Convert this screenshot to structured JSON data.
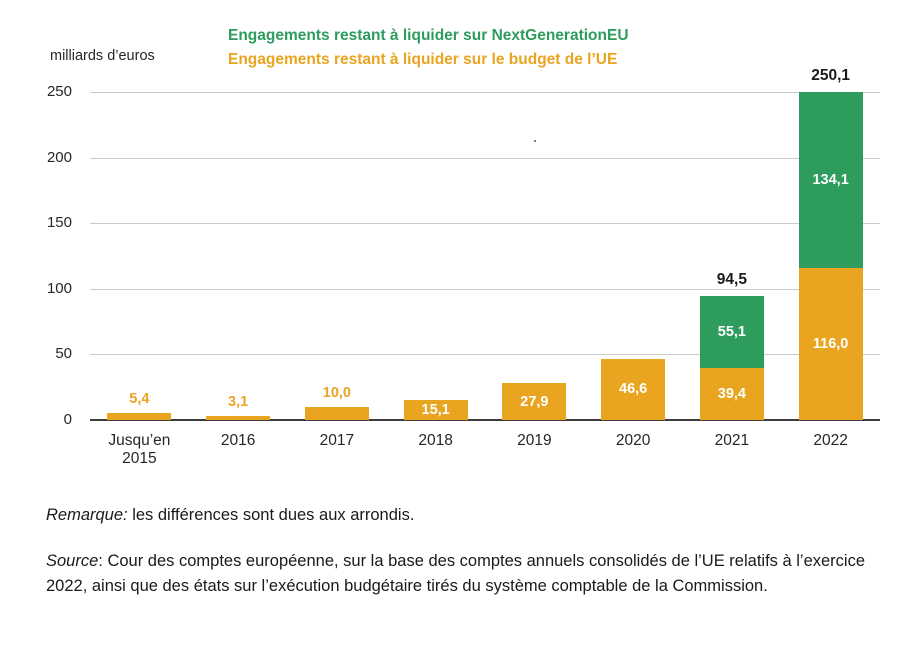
{
  "chart_data": {
    "type": "bar",
    "stacked": true,
    "title": "",
    "ylabel": "milliards d’euros",
    "xlabel": "",
    "ylim": [
      0,
      250
    ],
    "yticks": [
      0,
      50,
      100,
      150,
      200,
      250
    ],
    "grid": true,
    "legend_position": "top",
    "categories": [
      "Jusqu’en 2015",
      "2016",
      "2017",
      "2018",
      "2019",
      "2020",
      "2021",
      "2022"
    ],
    "series": [
      {
        "key": "budget-ue",
        "name": "Engagements restant à liquider sur le budget de l’UE",
        "color": "#E9A420",
        "values": [
          5.4,
          3.1,
          10.0,
          15.1,
          27.9,
          46.6,
          39.4,
          116.0
        ],
        "labels": [
          "5,4",
          "3,1",
          "10,0",
          "15,1",
          "27,9",
          "46,6",
          "39,4",
          "116,0"
        ],
        "label_positions": [
          "above",
          "above",
          "above",
          "inside",
          "inside",
          "inside",
          "inside",
          "inside"
        ]
      },
      {
        "key": "ngeu",
        "name": "Engagements restant à liquider sur NextGenerationEU",
        "color": "#2D9C5C",
        "values": [
          0,
          0,
          0,
          0,
          0,
          0,
          55.1,
          134.1
        ],
        "labels": [
          "",
          "",
          "",
          "",
          "",
          "",
          "55,1",
          "134,1"
        ],
        "label_positions": [
          "inside",
          "inside",
          "inside",
          "inside",
          "inside",
          "inside",
          "inside",
          "inside"
        ]
      }
    ],
    "totals": [
      "",
      "",
      "",
      "",
      "",
      "",
      "94,5",
      "250,1"
    ]
  },
  "notes": {
    "remarque_label": "Remarque:",
    "remarque_text": " les différences sont dues aux arrondis.",
    "source_label": "Source",
    "source_text": ": Cour des comptes européenne, sur la base des comptes annuels consolidés de l’UE relatifs à l’exercice 2022, ainsi que des états sur l’exécution budgétaire tirés du système comptable de la Commission."
  }
}
